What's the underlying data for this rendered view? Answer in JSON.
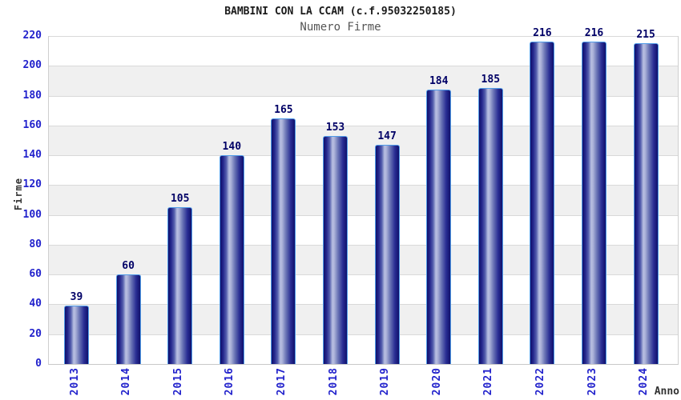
{
  "chart_data": {
    "type": "bar",
    "title": "BAMBINI CON LA CCAM (c.f.95032250185)",
    "subtitle": "Numero Firme",
    "xlabel": "Anno",
    "ylabel": "Firme",
    "categories": [
      "2013",
      "2014",
      "2015",
      "2016",
      "2017",
      "2018",
      "2019",
      "2020",
      "2021",
      "2022",
      "2023",
      "2024"
    ],
    "values": [
      39,
      60,
      105,
      140,
      165,
      153,
      147,
      184,
      185,
      216,
      216,
      215
    ],
    "ylim": [
      0,
      220
    ],
    "ytick_step": 20,
    "yticks": [
      0,
      20,
      40,
      60,
      80,
      100,
      120,
      140,
      160,
      180,
      200,
      220
    ],
    "grid": "horizontal gridlines with alternating shaded bands",
    "legend": "none",
    "colors": {
      "bar_edge": "#4f9be8",
      "bar_dark": "#10106b",
      "bar_mid": "#2a2e94",
      "bar_light": "#b9c0e2",
      "axis_text_blue": "#2222cc",
      "value_label_navy": "#000066",
      "title_text": "#1a1a1a",
      "subtitle_text": "#555555",
      "band_gray": "#f0f0f0",
      "gridline": "#d9d9d9",
      "background": "#ffffff"
    }
  }
}
